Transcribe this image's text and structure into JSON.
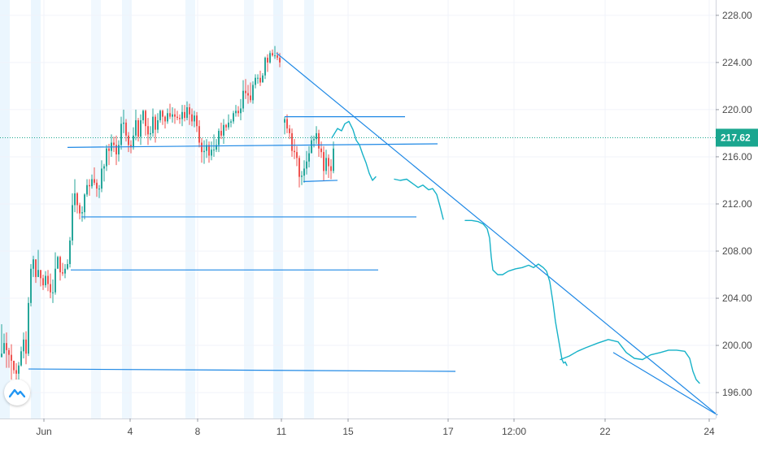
{
  "chart_data": {
    "type": "candlestick",
    "title": "",
    "xlabel": "",
    "ylabel": "",
    "ylim": [
      193.8,
      229.3
    ],
    "y_ticks": [
      "228.00",
      "224.00",
      "220.00",
      "216.00",
      "212.00",
      "208.00",
      "204.00",
      "200.00",
      "196.00"
    ],
    "y_tick_values": [
      228,
      224,
      220,
      216,
      212,
      208,
      204,
      200,
      196
    ],
    "x_ticks": [
      {
        "label": "Jun",
        "t": 54
      },
      {
        "label": "4",
        "t": 160
      },
      {
        "label": "8",
        "t": 243
      },
      {
        "label": "11",
        "t": 346
      },
      {
        "label": "15",
        "t": 428
      },
      {
        "label": "17",
        "t": 551
      },
      {
        "label": "12:00",
        "t": 632
      },
      {
        "label": "22",
        "t": 744
      },
      {
        "label": "24",
        "t": 872
      }
    ],
    "current_price": 217.62,
    "current_price_label": "217.62",
    "colors": {
      "up": "#26a69a",
      "down": "#ef5350",
      "drawing": "#1e88e5",
      "projection": "#17b2c8",
      "price_line": "#1aa68f",
      "session_shade": "#e3f2fd",
      "grid": "#f0f3fa"
    },
    "candles": {
      "t": [
        2,
        5,
        8,
        11,
        14,
        17,
        20,
        23,
        26,
        29,
        32,
        35,
        38,
        41,
        44,
        47,
        50,
        53,
        56,
        59,
        62,
        65,
        68,
        71,
        74,
        77,
        80,
        83,
        86,
        89,
        92,
        95,
        98,
        101,
        104,
        107,
        110,
        113,
        116,
        119,
        122,
        125,
        128,
        131,
        134,
        137,
        140,
        143,
        146,
        149,
        152,
        155,
        158,
        161,
        164,
        167,
        170,
        173,
        176,
        179,
        182,
        185,
        188,
        191,
        194,
        197,
        200,
        203,
        206,
        209,
        212,
        215,
        218,
        221,
        224,
        227,
        230,
        233,
        236,
        239,
        242,
        245,
        248,
        251,
        254,
        257,
        260,
        263,
        266,
        269,
        272,
        275,
        278,
        281,
        284,
        287,
        290,
        293,
        296,
        299,
        302,
        305,
        308,
        311,
        314,
        317,
        320,
        323,
        326,
        329,
        332,
        335,
        338,
        341,
        344
      ],
      "close": [
        199.3,
        200.2,
        199.6,
        199.2,
        198.7,
        197.9,
        197.6,
        198.3,
        199.5,
        200.5,
        199.3,
        203.6,
        206.5,
        207.3,
        205.8,
        206.4,
        205.7,
        205.1,
        205.9,
        205.2,
        204.5,
        204.5,
        206.5,
        207.5,
        206.2,
        206.1,
        206.5,
        206.9,
        208.9,
        211.9,
        212.9,
        211.9,
        211.2,
        211.3,
        212.8,
        213.6,
        213.5,
        214.1,
        213.8,
        213.3,
        213.3,
        215.0,
        215.2,
        216.7,
        216.5,
        217.2,
        217.0,
        216.2,
        217.0,
        218.8,
        218.9,
        217.8,
        217.0,
        216.8,
        217.8,
        219.1,
        217.7,
        219.1,
        219.9,
        218.6,
        217.9,
        218.0,
        219.4,
        218.3,
        219.1,
        219.9,
        219.4,
        219.0,
        219.7,
        219.4,
        219.6,
        219.4,
        219.3,
        219.2,
        219.8,
        219.3,
        220.2,
        219.6,
        219.0,
        219.5,
        218.6,
        217.2,
        216.4,
        216.5,
        217.0,
        216.1,
        216.6,
        216.6,
        217.0,
        218.2,
        217.8,
        218.7,
        218.5,
        218.9,
        219.0,
        219.7,
        219.9,
        219.7,
        220.1,
        221.6,
        221.4,
        221.2,
        220.8,
        222.1,
        222.7,
        222.7,
        222.3,
        222.9,
        224.4,
        224.0,
        224.8,
        224.6,
        224.6,
        224.4,
        224.0
      ],
      "high": [
        201.8,
        201.0,
        201.1,
        199.8,
        200.1,
        198.2,
        198.5,
        198.6,
        199.9,
        201.1,
        201.2,
        204.1,
        206.9,
        207.6,
        207.3,
        208.1,
        206.2,
        206.0,
        206.3,
        206.4,
        206.1,
        205.6,
        207.9,
        207.6,
        207.6,
        207.0,
        206.9,
        207.3,
        209.2,
        212.9,
        214.1,
        213.0,
        212.1,
        211.8,
        212.9,
        214.1,
        214.1,
        214.5,
        215.1,
        214.1,
        213.6,
        215.7,
        215.4,
        217.0,
        217.1,
        217.9,
        217.7,
        217.8,
        217.4,
        219.4,
        220.0,
        219.2,
        218.1,
        217.4,
        218.5,
        220.0,
        219.3,
        219.6,
        220.0,
        220.0,
        219.3,
        218.6,
        220.1,
        219.6,
        219.7,
        220.0,
        220.0,
        219.5,
        220.1,
        220.5,
        220.2,
        220.1,
        219.9,
        219.6,
        220.4,
        220.4,
        220.7,
        220.5,
        220.1,
        219.9,
        219.8,
        219.1,
        217.6,
        217.4,
        217.5,
        217.3,
        217.3,
        217.9,
        217.5,
        218.4,
        218.9,
        219.2,
        218.8,
        219.6,
        219.2,
        219.9,
        220.4,
        220.3,
        220.9,
        222.5,
        222.6,
        222.1,
        222.3,
        222.4,
        223.0,
        223.0,
        223.3,
        223.1,
        224.5,
        224.7,
        225.0,
        225.1,
        225.4,
        224.9,
        224.8
      ],
      "low": [
        199.0,
        199.6,
        198.1,
        198.1,
        197.1,
        197.6,
        196.9,
        197.1,
        198.2,
        198.9,
        198.4,
        199.1,
        203.3,
        205.8,
        205.3,
        206.2,
        205.0,
        204.7,
        204.9,
        204.6,
        204.0,
        203.6,
        204.3,
        206.7,
        205.5,
        205.9,
        205.7,
        206.4,
        206.6,
        208.5,
        211.3,
        211.2,
        210.7,
        210.5,
        210.7,
        212.6,
        212.7,
        213.3,
        213.6,
        212.6,
        212.5,
        213.0,
        213.9,
        214.8,
        215.3,
        216.0,
        216.4,
        215.3,
        215.6,
        216.6,
        218.0,
        217.3,
        216.4,
        216.3,
        216.6,
        217.4,
        217.3,
        217.0,
        218.8,
        217.8,
        217.0,
        217.4,
        217.7,
        217.2,
        218.0,
        218.9,
        218.7,
        218.4,
        218.8,
        219.2,
        218.9,
        218.8,
        219.1,
        218.8,
        218.6,
        219.0,
        219.1,
        218.7,
        218.6,
        218.5,
        218.1,
        216.8,
        215.5,
        215.4,
        215.9,
        215.5,
        215.7,
        216.0,
        216.4,
        216.4,
        217.5,
        217.1,
        218.2,
        218.3,
        218.5,
        218.8,
        219.4,
        219.4,
        219.1,
        219.8,
        220.9,
        220.5,
        220.6,
        220.5,
        221.8,
        222.2,
        222.0,
        222.3,
        222.6,
        223.2,
        223.9,
        224.5,
        224.3,
        224.2,
        223.6
      ]
    },
    "candles_session2": {
      "t": [
        350,
        353,
        356,
        359,
        362,
        365,
        368,
        371,
        374,
        377,
        380,
        383,
        386,
        389,
        392,
        395,
        398,
        401,
        404,
        407,
        410
      ],
      "close": [
        219.2,
        218.4,
        218.0,
        216.5,
        216.4,
        215.9,
        214.3,
        214.4,
        215.0,
        215.6,
        216.3,
        217.4,
        217.5,
        218.0,
        216.7,
        216.4,
        214.8,
        215.9,
        215.2,
        214.8,
        216.7
      ],
      "high": [
        219.4,
        219.6,
        218.7,
        218.4,
        217.5,
        216.9,
        216.1,
        214.8,
        215.7,
        216.5,
        216.9,
        217.8,
        217.8,
        218.6,
        218.3,
        217.3,
        216.9,
        216.6,
        216.2,
        215.8,
        217.3
      ],
      "low": [
        217.9,
        218.0,
        217.5,
        216.0,
        215.8,
        215.2,
        213.4,
        213.6,
        213.8,
        214.5,
        215.1,
        216.8,
        216.8,
        217.1,
        216.0,
        215.9,
        214.0,
        214.5,
        214.2,
        214.1,
        214.6
      ]
    },
    "drawings": {
      "horizontal_lines": [
        {
          "t1": 83,
          "y1": 216.8,
          "t2": 538,
          "y2": 217.1
        },
        {
          "t1": 350,
          "y1": 219.4,
          "t2": 498,
          "y2": 219.4
        },
        {
          "t1": 373,
          "y1": 213.9,
          "t2": 415,
          "y2": 214.0
        },
        {
          "t1": 100,
          "y1": 210.9,
          "t2": 512,
          "y2": 210.9
        },
        {
          "t1": 87,
          "y1": 206.4,
          "t2": 465,
          "y2": 206.4
        },
        {
          "t1": 35,
          "y1": 198.0,
          "t2": 560,
          "y2": 197.8
        }
      ],
      "trend_lines": [
        {
          "t1": 340,
          "y1": 224.8,
          "t2": 882,
          "y2": 194.1
        },
        {
          "t1": 754,
          "y1": 199.4,
          "t2": 882,
          "y2": 194.1
        }
      ],
      "projection_segments": [
        [
          [
            408,
            217.6
          ],
          [
            415,
            218.4
          ],
          [
            420,
            218.2
          ],
          [
            424,
            218.8
          ],
          [
            429,
            219.0
          ],
          [
            434,
            218.3
          ],
          [
            438,
            217.4
          ],
          [
            442,
            217.0
          ],
          [
            446,
            216.2
          ],
          [
            450,
            215.5
          ],
          [
            454,
            214.6
          ],
          [
            458,
            214.0
          ],
          [
            462,
            214.3
          ]
        ],
        [
          [
            485,
            214.1
          ],
          [
            492,
            214.0
          ],
          [
            500,
            214.1
          ],
          [
            508,
            213.7
          ],
          [
            514,
            213.4
          ],
          [
            520,
            213.6
          ],
          [
            527,
            213.2
          ],
          [
            532,
            213.3
          ],
          [
            537,
            212.8
          ],
          [
            541,
            211.8
          ],
          [
            545,
            210.7
          ]
        ],
        [
          [
            572,
            210.6
          ],
          [
            580,
            210.6
          ],
          [
            588,
            210.5
          ],
          [
            594,
            210.3
          ],
          [
            599,
            209.9
          ],
          [
            602,
            209.1
          ],
          [
            604,
            207.5
          ],
          [
            606,
            206.4
          ],
          [
            612,
            206.0
          ],
          [
            618,
            206.0
          ],
          [
            625,
            206.3
          ],
          [
            634,
            206.5
          ],
          [
            642,
            206.6
          ],
          [
            650,
            206.8
          ],
          [
            656,
            206.6
          ],
          [
            662,
            206.9
          ],
          [
            668,
            206.6
          ],
          [
            672,
            206.3
          ],
          [
            676,
            205.4
          ],
          [
            680,
            203.6
          ],
          [
            683,
            202.0
          ],
          [
            686,
            200.8
          ],
          [
            689,
            199.6
          ],
          [
            691,
            198.8
          ],
          [
            693,
            198.5
          ],
          [
            695,
            198.6
          ],
          [
            697,
            198.3
          ]
        ],
        [
          [
            689,
            198.8
          ],
          [
            700,
            199.1
          ],
          [
            710,
            199.5
          ],
          [
            720,
            199.8
          ],
          [
            735,
            200.2
          ],
          [
            748,
            200.5
          ],
          [
            760,
            200.3
          ],
          [
            770,
            199.4
          ],
          [
            780,
            198.9
          ],
          [
            790,
            198.8
          ],
          [
            800,
            199.2
          ],
          [
            812,
            199.4
          ],
          [
            822,
            199.6
          ],
          [
            832,
            199.6
          ],
          [
            842,
            199.5
          ],
          [
            848,
            198.9
          ],
          [
            852,
            197.8
          ],
          [
            856,
            197.1
          ],
          [
            860,
            196.8
          ]
        ]
      ]
    },
    "session_shading": [
      {
        "t1": 0,
        "t2": 12,
        "opacity": 0.7
      },
      {
        "t1": 38,
        "t2": 50,
        "opacity": 0.7
      },
      {
        "t1": 112,
        "t2": 124,
        "opacity": 0.5
      },
      {
        "t1": 150,
        "t2": 162,
        "opacity": 0.6
      },
      {
        "t1": 228,
        "t2": 240,
        "opacity": 0.6
      },
      {
        "t1": 300,
        "t2": 312,
        "opacity": 0.5
      },
      {
        "t1": 336,
        "t2": 348,
        "opacity": 0.7
      },
      {
        "t1": 374,
        "t2": 386,
        "opacity": 0.6
      }
    ]
  }
}
